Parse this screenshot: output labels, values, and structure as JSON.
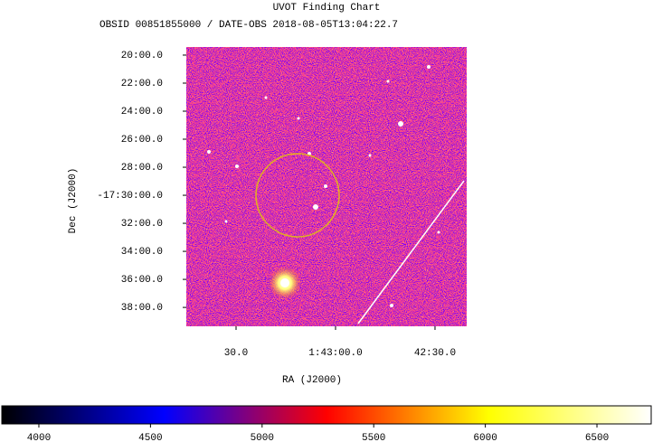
{
  "chart_data": {
    "type": "image",
    "title": "UVOT Finding Chart",
    "subtitle": "OBSID 00851855000 / DATE-OBS 2018-08-05T13:04:22.7",
    "xlabel": "RA (J2000)",
    "ylabel": "Dec (J2000)",
    "xlim": [
      25.9375,
      25.5852
    ],
    "xticks": [
      {
        "value": 25.875,
        "label": "30.0"
      },
      {
        "value": 25.75,
        "label": "1:43:00.0"
      },
      {
        "value": 25.625,
        "label": "42:30.0"
      }
    ],
    "ylim": [
      -17.6558,
      -17.3237
    ],
    "yticks": [
      {
        "value": -17.33333,
        "label": "20:00.0"
      },
      {
        "value": -17.36667,
        "label": "22:00.0"
      },
      {
        "value": -17.4,
        "label": "24:00.0"
      },
      {
        "value": -17.43333,
        "label": "26:00.0"
      },
      {
        "value": -17.46667,
        "label": "28:00.0"
      },
      {
        "value": -17.5,
        "label": "-17:30:00.0"
      },
      {
        "value": -17.53333,
        "label": "32:00.0"
      },
      {
        "value": -17.56667,
        "label": "34:00.0"
      },
      {
        "value": -17.6,
        "label": "36:00.0"
      },
      {
        "value": -17.63333,
        "label": "38:00.0"
      }
    ],
    "colorbar": {
      "clim": [
        3834,
        6743
      ],
      "ticks": [
        4000,
        4500,
        5000,
        5500,
        6000,
        6500
      ],
      "colormap": [
        "#000000",
        "#0000ff",
        "#ff0000",
        "#ffff00",
        "#ffffff"
      ]
    }
  }
}
